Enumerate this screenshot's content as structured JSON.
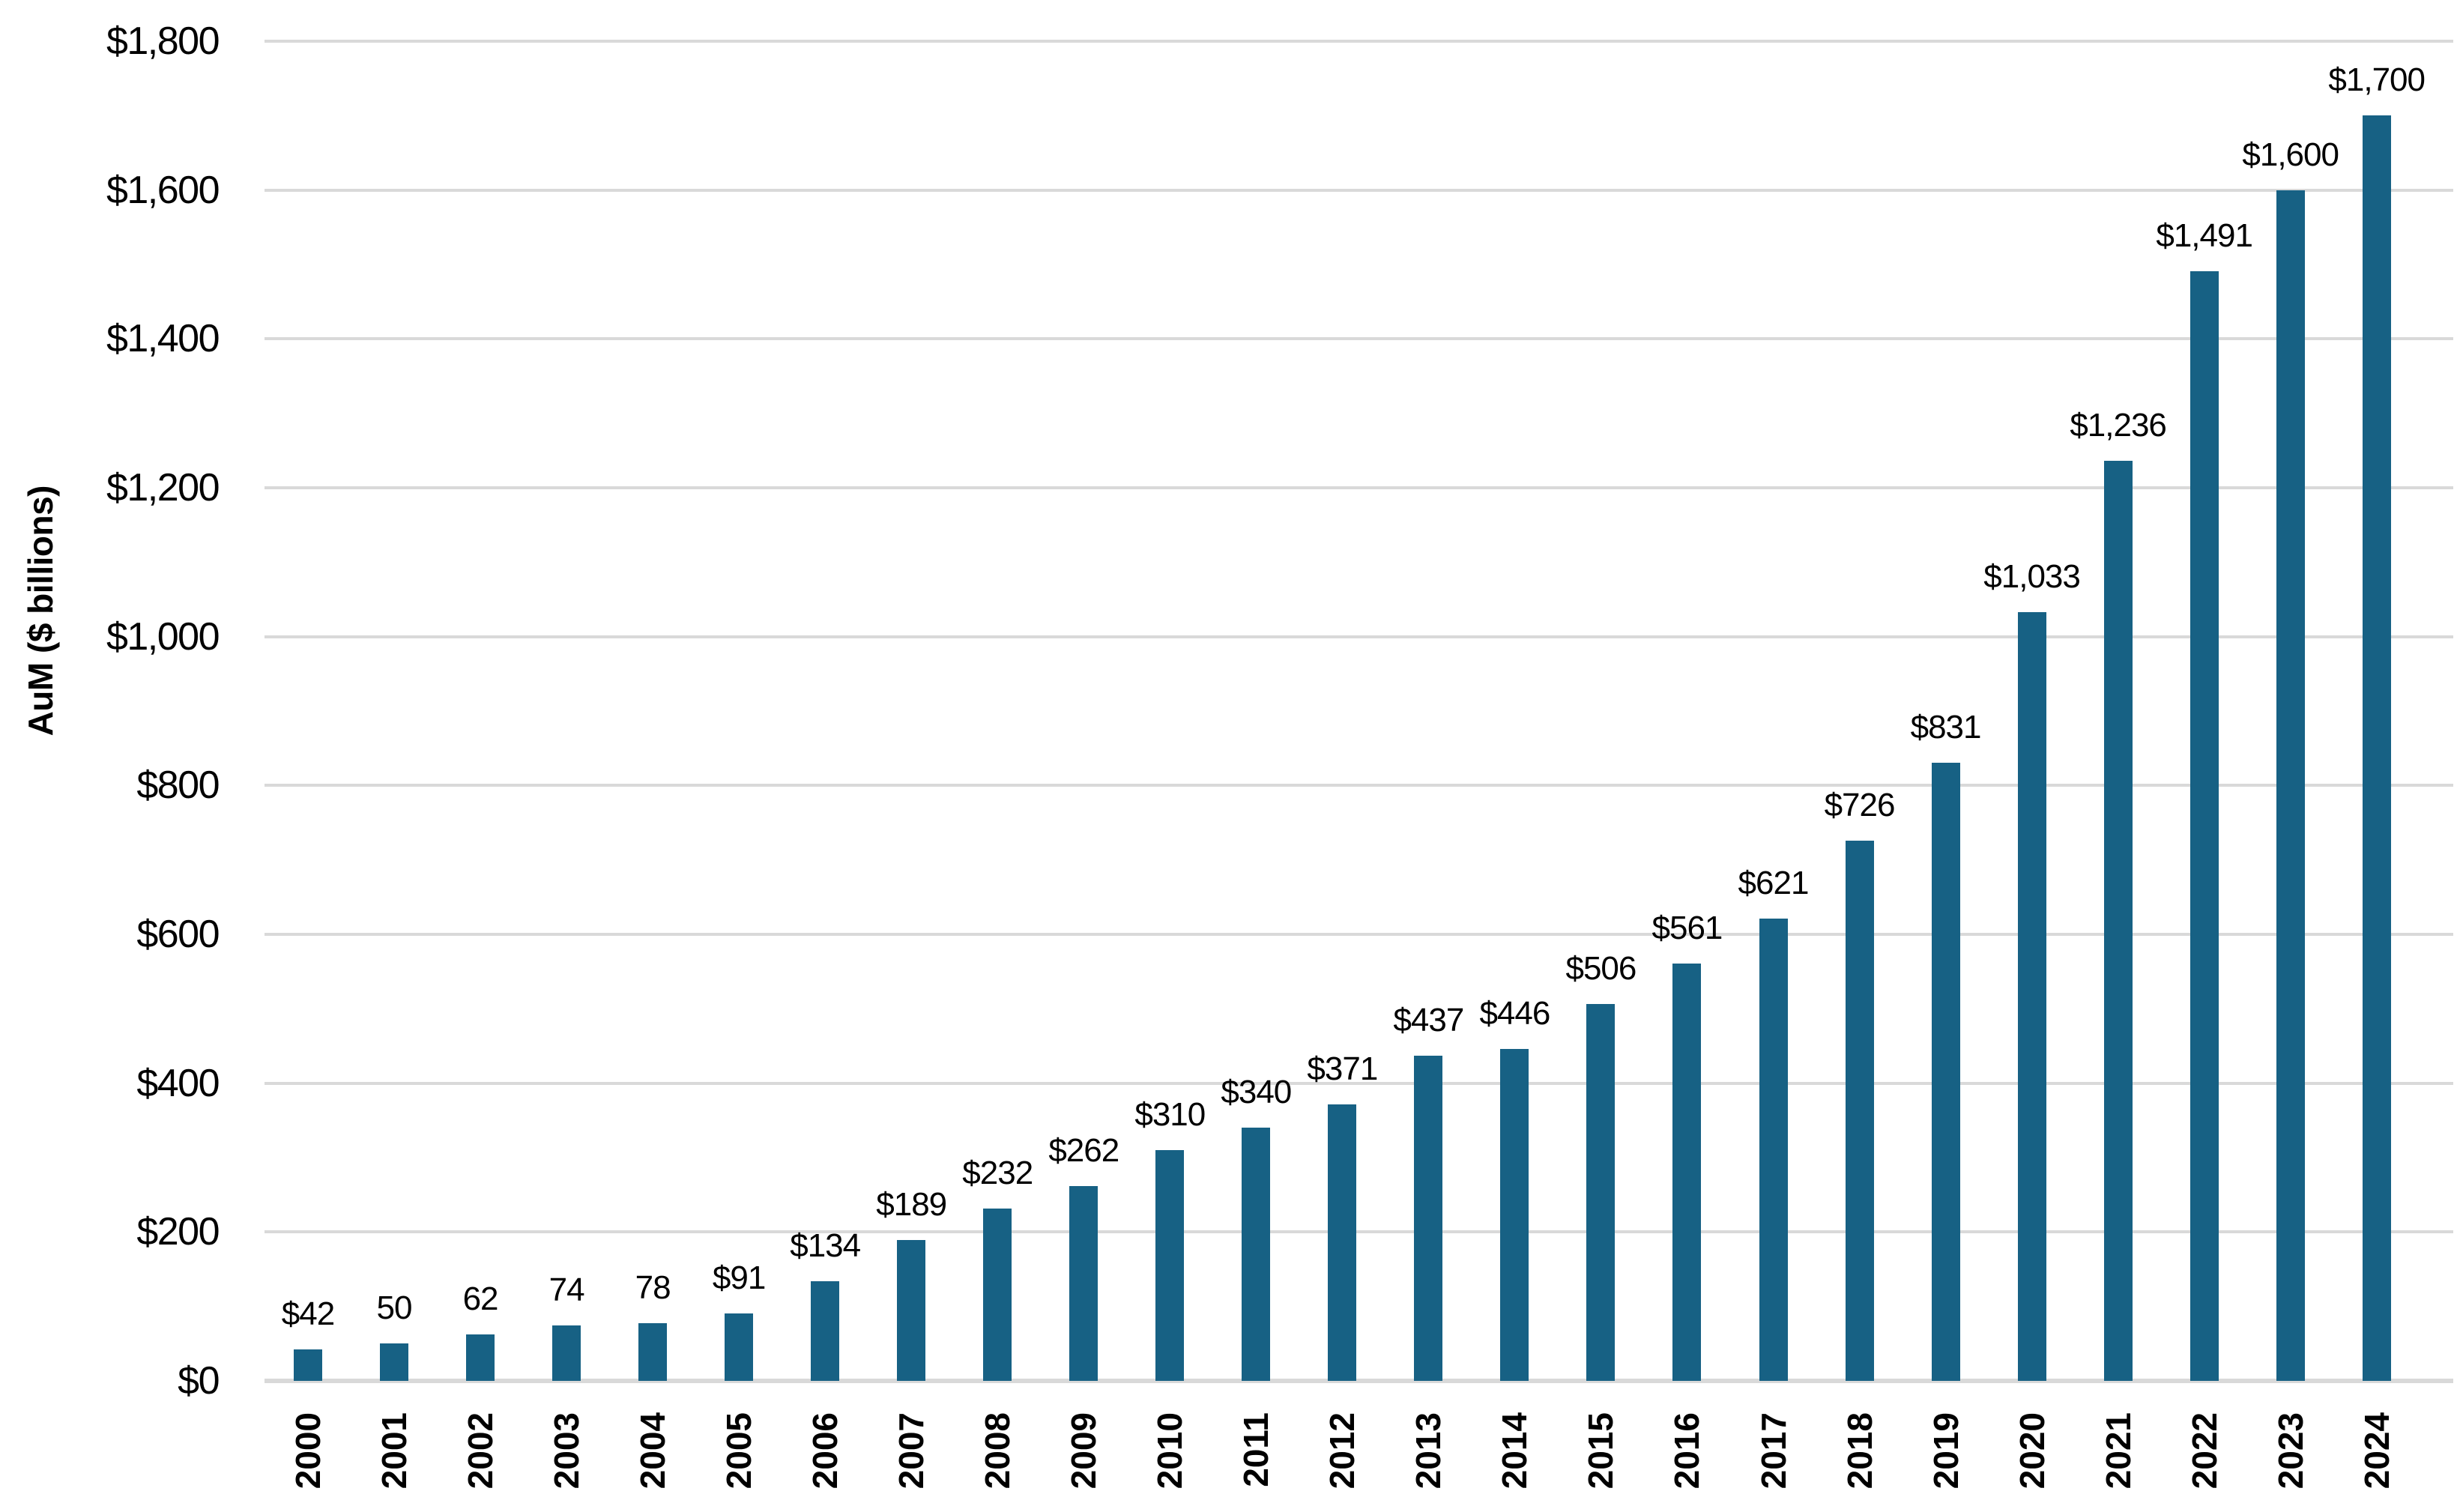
{
  "colors": {
    "bar": "#176184",
    "gridline": "#D9D9D9",
    "axis_line": "#D9D9D9",
    "text": "#000000",
    "background": "#FFFFFF"
  },
  "y_axis": {
    "title": "AuM ($ billions)",
    "ticks": [
      "$0",
      "$200",
      "$400",
      "$600",
      "$800",
      "$1,000",
      "$1,200",
      "$1,400",
      "$1,600",
      "$1,800"
    ],
    "min": 0,
    "max": 1800,
    "step": 200
  },
  "chart_data": {
    "type": "bar",
    "title": "",
    "xlabel": "",
    "ylabel": "AuM ($ billions)",
    "ylim": [
      0,
      1800
    ],
    "grid": true,
    "legend": false,
    "categories": [
      "2000",
      "2001",
      "2002",
      "2003",
      "2004",
      "2005",
      "2006",
      "2007",
      "2008",
      "2009",
      "2010",
      "2011",
      "2012",
      "2013",
      "2014",
      "2015",
      "2016",
      "2017",
      "2018",
      "2019",
      "2020",
      "2021",
      "2022",
      "2023",
      "2024"
    ],
    "values": [
      42,
      50,
      62,
      74,
      78,
      91,
      134,
      189,
      232,
      262,
      310,
      340,
      371,
      437,
      446,
      506,
      561,
      621,
      726,
      831,
      1033,
      1236,
      1491,
      1600,
      1700
    ],
    "data_labels": [
      "$42",
      "50",
      "62",
      "74",
      "78",
      "$91",
      "$134",
      "$189",
      "$232",
      "$262",
      "$310",
      "$340",
      "$371",
      "$437",
      "$446",
      "$506",
      "$561",
      "$621",
      "$726",
      "$831",
      "$1,033",
      "$1,236",
      "$1,491",
      "$1,600",
      "$1,700"
    ]
  }
}
